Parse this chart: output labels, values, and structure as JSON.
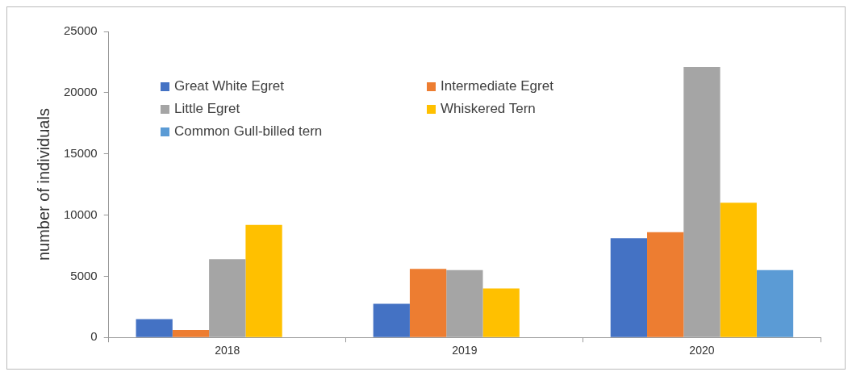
{
  "chart_data": {
    "type": "bar",
    "ylabel": "number of individuals",
    "categories": [
      "2018",
      "2019",
      "2020"
    ],
    "series": [
      {
        "name": "Great White Egret",
        "color": "#4472c4",
        "values": [
          1500,
          2750,
          8100
        ]
      },
      {
        "name": "Intermediate Egret",
        "color": "#ed7d31",
        "values": [
          600,
          5600,
          8600
        ]
      },
      {
        "name": "Little Egret",
        "color": "#a5a5a5",
        "values": [
          6400,
          5500,
          22100
        ]
      },
      {
        "name": "Whiskered Tern",
        "color": "#ffc000",
        "values": [
          9200,
          4000,
          11000
        ]
      },
      {
        "name": "Common Gull-billed tern",
        "color": "#5b9bd5",
        "values": [
          null,
          null,
          5500
        ]
      }
    ],
    "ylim": [
      0,
      25000
    ],
    "yticks": [
      0,
      5000,
      10000,
      15000,
      20000,
      25000
    ],
    "grid": false,
    "legend": "top left"
  }
}
